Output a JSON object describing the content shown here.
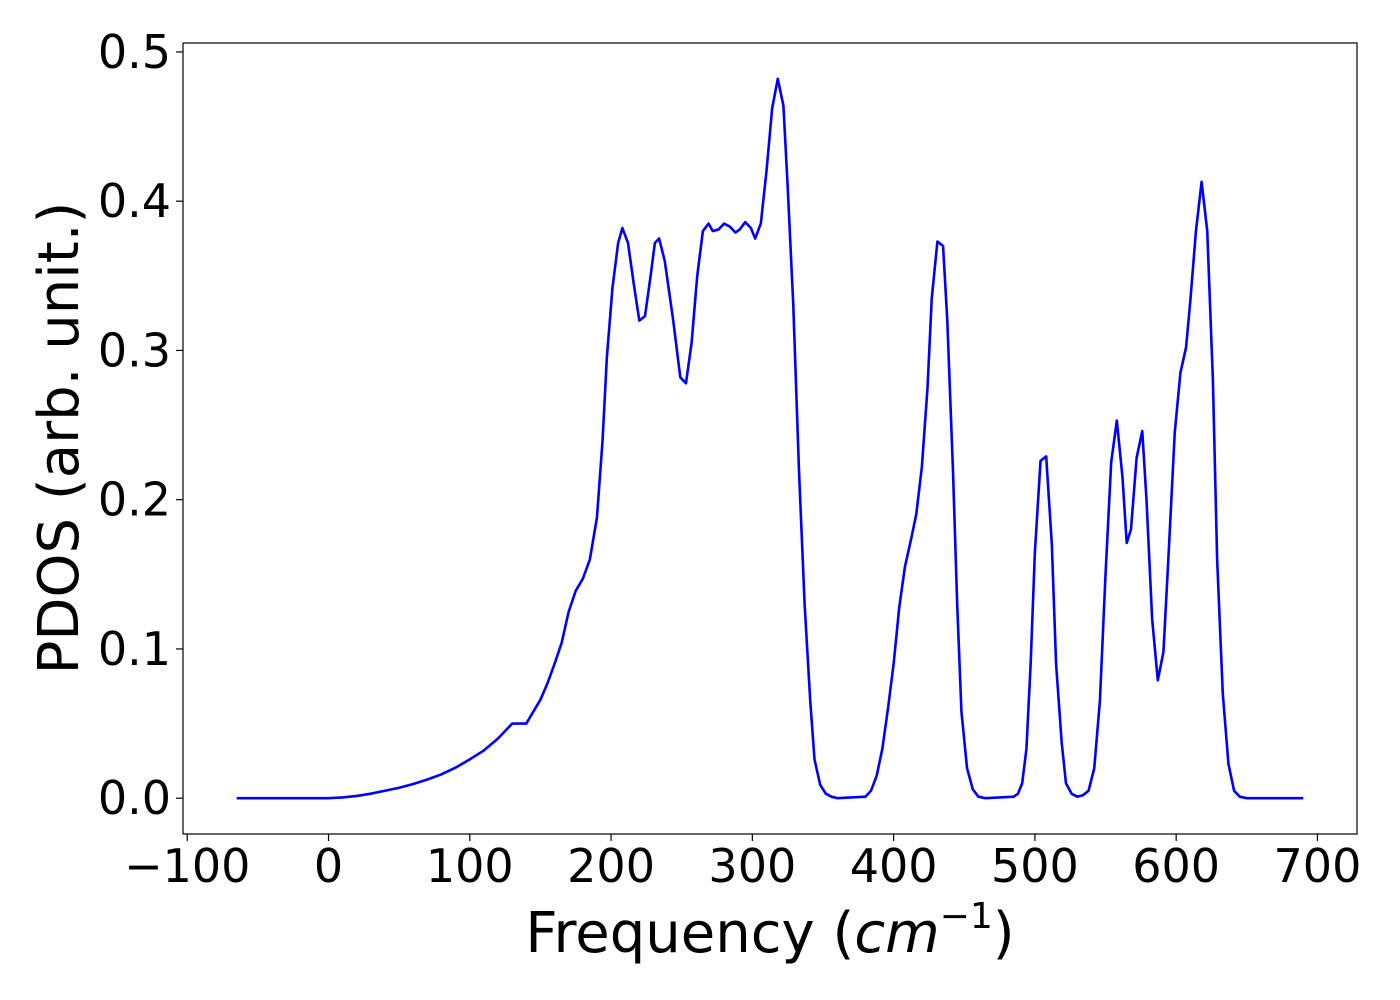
{
  "chart_data": {
    "type": "line",
    "xlabel": [
      "Frequency (",
      "cm",
      "−1",
      ")"
    ],
    "ylabel": "PDOS (arb. unit.)",
    "xlim": [
      -103,
      728
    ],
    "ylim": [
      -0.024,
      0.506
    ],
    "xticks": [
      {
        "value": -100,
        "label": "−100"
      },
      0,
      100,
      200,
      300,
      400,
      500,
      600,
      700
    ],
    "yticks": [
      {
        "value": 0,
        "label": "0.0"
      },
      0.1,
      0.2,
      0.3,
      0.4,
      0.5
    ],
    "x": [
      -65,
      -30,
      0,
      10,
      20,
      30,
      40,
      50,
      60,
      70,
      80,
      90,
      100,
      110,
      120,
      130,
      140,
      150,
      155,
      160,
      165,
      170,
      175,
      180,
      185,
      190,
      194,
      197,
      201,
      205,
      208,
      212,
      216,
      220,
      224,
      228,
      231,
      234,
      238,
      244,
      249,
      253,
      257,
      261,
      265,
      269,
      272,
      276,
      280,
      284,
      288,
      291,
      295,
      299,
      302,
      306,
      310,
      314,
      318,
      322,
      325,
      329,
      333,
      337,
      341,
      344,
      348,
      352,
      356,
      360,
      380,
      384,
      388,
      392,
      396,
      400,
      404,
      408,
      412,
      416,
      420,
      424,
      427,
      431,
      435,
      438,
      442,
      445,
      448,
      452,
      456,
      460,
      465,
      485,
      488,
      491,
      494,
      497,
      500,
      504,
      508,
      512,
      515,
      519,
      522,
      526,
      530,
      534,
      538,
      542,
      546,
      550,
      554,
      558,
      562,
      565,
      568,
      572,
      576,
      579,
      583,
      587,
      591,
      595,
      599,
      603,
      607,
      610,
      614,
      618,
      622,
      626,
      629,
      633,
      637,
      641,
      645,
      650,
      690
    ],
    "series": [
      {
        "color": "#0000ff",
        "values": [
          0,
          0,
          0,
          0.0005,
          0.0015,
          0.003,
          0.005,
          0.007,
          0.0095,
          0.0125,
          0.016,
          0.0205,
          0.026,
          0.032,
          0.04,
          0.05,
          0.05,
          0.066,
          0.077,
          0.09,
          0.104,
          0.125,
          0.139,
          0.147,
          0.16,
          0.188,
          0.24,
          0.295,
          0.342,
          0.372,
          0.382,
          0.372,
          0.345,
          0.32,
          0.323,
          0.35,
          0.372,
          0.375,
          0.36,
          0.32,
          0.282,
          0.278,
          0.305,
          0.35,
          0.38,
          0.385,
          0.38,
          0.381,
          0.385,
          0.383,
          0.379,
          0.381,
          0.386,
          0.382,
          0.375,
          0.385,
          0.42,
          0.462,
          0.482,
          0.464,
          0.41,
          0.33,
          0.22,
          0.13,
          0.065,
          0.026,
          0.009,
          0.003,
          0.001,
          0,
          0.001,
          0.005,
          0.015,
          0.033,
          0.06,
          0.09,
          0.128,
          0.155,
          0.172,
          0.19,
          0.222,
          0.275,
          0.335,
          0.373,
          0.37,
          0.32,
          0.22,
          0.13,
          0.058,
          0.02,
          0.006,
          0.001,
          0,
          0.001,
          0.003,
          0.01,
          0.033,
          0.09,
          0.165,
          0.226,
          0.229,
          0.17,
          0.09,
          0.037,
          0.01,
          0.003,
          0.001,
          0.002,
          0.005,
          0.02,
          0.065,
          0.15,
          0.225,
          0.253,
          0.215,
          0.171,
          0.18,
          0.228,
          0.246,
          0.2,
          0.12,
          0.079,
          0.098,
          0.17,
          0.245,
          0.285,
          0.302,
          0.333,
          0.38,
          0.413,
          0.38,
          0.28,
          0.16,
          0.07,
          0.023,
          0.005,
          0.001,
          0,
          0
        ]
      }
    ]
  }
}
